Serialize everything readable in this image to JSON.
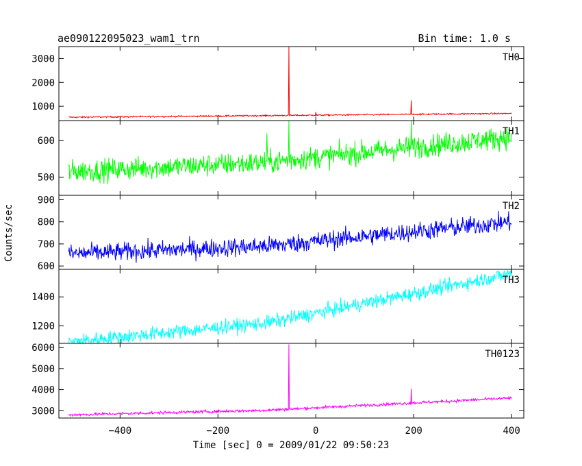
{
  "header": {
    "title": "ae090122095023_wam1_trn",
    "bin_time": "Bin time: 1.0 s"
  },
  "axes": {
    "xlabel": "Time [sec] 0 = 2009/01/22 09:50:23",
    "ylabel": "Counts/sec"
  },
  "chart_data": {
    "type": "line",
    "title": "ae090122095023_wam1_trn",
    "subtitle": "Bin time: 1.0 s",
    "xlabel": "Time [sec] 0 = 2009/01/22 09:50:23",
    "ylabel": "Counts/sec",
    "xlim": [
      -525,
      425
    ],
    "xticks": [
      -400,
      -200,
      0,
      200,
      400
    ],
    "x_tick_labels": [
      "−400",
      "−200",
      "0",
      "200",
      "400"
    ],
    "bin_seconds": 1.0,
    "x_range": [
      -505,
      400
    ],
    "shared_x": true,
    "grid": false,
    "panels": [
      {
        "name": "TH0",
        "color": "#ff0000",
        "ylim": [
          400,
          3500
        ],
        "yticks": [
          1000,
          2000,
          3000
        ],
        "trend": [
          [
            -505,
            540
          ],
          [
            -100,
            610
          ],
          [
            400,
            700
          ]
        ],
        "noise": 22,
        "spikes": [
          {
            "x": -55,
            "y": 3500
          },
          {
            "x": 195,
            "y": 1250
          },
          {
            "x": 0,
            "y": 760
          }
        ]
      },
      {
        "name": "TH1",
        "color": "#00ff00",
        "ylim": [
          450,
          655
        ],
        "yticks": [
          500,
          600
        ],
        "trend": [
          [
            -505,
            515
          ],
          [
            -100,
            540
          ],
          [
            400,
            610
          ]
        ],
        "noise": 22,
        "spikes": [
          {
            "x": -55,
            "y": 655
          },
          {
            "x": 195,
            "y": 655
          },
          {
            "x": -100,
            "y": 620
          }
        ]
      },
      {
        "name": "TH2",
        "color": "#0000ff",
        "ylim": [
          585,
          920
        ],
        "yticks": [
          600,
          700,
          800,
          900
        ],
        "trend": [
          [
            -505,
            655
          ],
          [
            -100,
            690
          ],
          [
            400,
            800
          ]
        ],
        "noise": 30,
        "spikes": []
      },
      {
        "name": "TH3",
        "color": "#00ffff",
        "ylim": [
          1080,
          1590
        ],
        "yticks": [
          1200,
          1400
        ],
        "trend": [
          [
            -505,
            1090
          ],
          [
            -100,
            1220
          ],
          [
            400,
            1560
          ]
        ],
        "noise": 35,
        "spikes": []
      },
      {
        "name": "TH0123",
        "color": "#ff00ff",
        "ylim": [
          2650,
          6200
        ],
        "yticks": [
          3000,
          4000,
          5000,
          6000
        ],
        "trend": [
          [
            -505,
            2800
          ],
          [
            -100,
            3020
          ],
          [
            400,
            3600
          ]
        ],
        "noise": 50,
        "spikes": [
          {
            "x": -55,
            "y": 6150
          },
          {
            "x": 195,
            "y": 4050
          }
        ]
      }
    ]
  }
}
